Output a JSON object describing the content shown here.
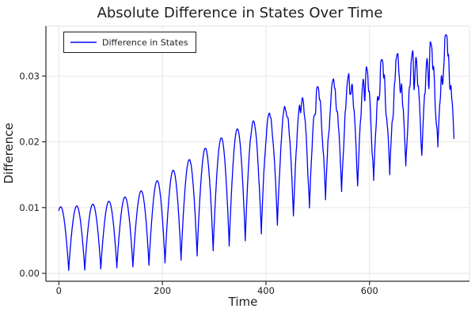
{
  "colors": {
    "line": "#0000ff",
    "grid": "#e3e3e3",
    "axis": "#2a2a2a",
    "text": "#1d1d1d",
    "legend_border": "#1d1d1d",
    "background": "#ffffff"
  },
  "chart_data": {
    "type": "line",
    "title": "Absolute Difference in States Over Time",
    "xlabel": "Time",
    "ylabel": "Difference",
    "legend_entries": [
      "Difference in States"
    ],
    "legend_position": "top-left",
    "grid": true,
    "xlim": [
      -25,
      793
    ],
    "ylim": [
      -0.0012,
      0.0376
    ],
    "xticks": [
      0,
      200,
      400,
      600
    ],
    "xtick_labels": [
      "0",
      "200",
      "400",
      "600"
    ],
    "yticks": [
      0,
      0.01,
      0.02,
      0.03
    ],
    "ytick_labels": [
      "0.00",
      "0.01",
      "0.02",
      "0.03"
    ],
    "t_domain": [
      0,
      763
    ],
    "series": [
      {
        "name": "Difference in States",
        "color": "#0000ff",
        "upper_envelope": {
          "t": [
            0,
            50,
            100,
            150,
            200,
            250,
            300,
            350,
            400,
            450,
            500,
            550,
            600,
            650,
            700,
            763
          ],
          "v": [
            0.0101,
            0.0103,
            0.011,
            0.0121,
            0.0146,
            0.0172,
            0.02,
            0.0222,
            0.0241,
            0.0262,
            0.0284,
            0.0303,
            0.0318,
            0.0333,
            0.0347,
            0.0368
          ]
        },
        "lower_envelope": {
          "t": [
            0,
            50,
            100,
            150,
            200,
            250,
            300,
            350,
            400,
            450,
            500,
            550,
            600,
            650,
            700,
            763
          ],
          "v": [
            0.0004,
            0.0005,
            0.0008,
            0.001,
            0.0015,
            0.0022,
            0.0035,
            0.0046,
            0.0063,
            0.0086,
            0.0106,
            0.0126,
            0.0139,
            0.0153,
            0.0179,
            0.0205
          ]
        },
        "oscillation": {
          "cusp_spacing": 31,
          "first_peak_t": 3.5,
          "peak_shape_exponent": 0.9,
          "notch_onset_t": 350,
          "notch_depth_max": 0.5,
          "notch_components": [
            {
              "period": 13.7,
              "phase": 0.8,
              "weight": 0.7
            },
            {
              "period": 7.3,
              "phase": 2.0,
              "weight": 0.3
            }
          ],
          "sample_step": 0.5
        }
      }
    ]
  }
}
